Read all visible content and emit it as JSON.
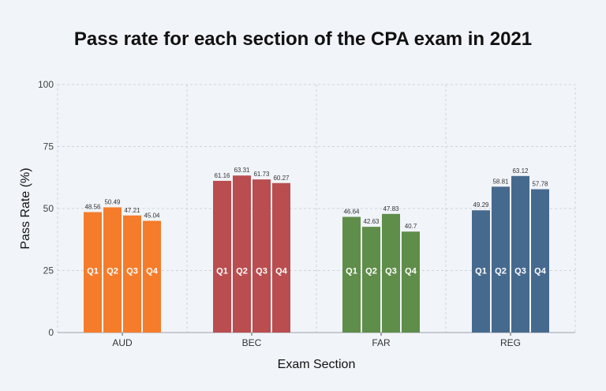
{
  "chart_data": {
    "type": "bar",
    "title": "Pass rate for each section of the CPA exam in 2021",
    "xlabel": "Exam Section",
    "ylabel": "Pass Rate (%)",
    "ylim": [
      0,
      100
    ],
    "yticks": [
      "0",
      "25",
      "50",
      "75",
      "100"
    ],
    "grid": true,
    "categories": [
      "AUD",
      "BEC",
      "FAR",
      "REG"
    ],
    "category_colors": [
      "#f57c2a",
      "#b94d4f",
      "#5f8d4a",
      "#466a8e"
    ],
    "series": [
      {
        "name": "Q1",
        "values": [
          48.56,
          61.16,
          46.64,
          49.29
        ]
      },
      {
        "name": "Q2",
        "values": [
          50.49,
          63.31,
          42.63,
          58.81
        ]
      },
      {
        "name": "Q3",
        "values": [
          47.21,
          61.73,
          47.83,
          63.12
        ]
      },
      {
        "name": "Q4",
        "values": [
          45.04,
          60.27,
          40.7,
          57.78
        ]
      }
    ]
  }
}
